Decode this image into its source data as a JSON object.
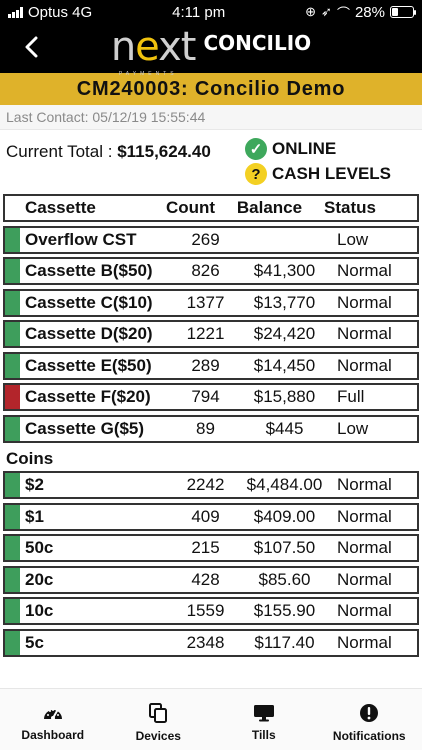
{
  "status_bar": {
    "carrier": "Optus 4G",
    "time": "4:11 pm",
    "battery": "28%",
    "battery_level": 0.28
  },
  "header": {
    "logo_main": "next",
    "logo_sub": "PAYMENTS",
    "logo_concilio": "CONCILIO"
  },
  "title": "CM240003: Concilio Demo",
  "last_contact": "Last Contact: 05/12/19 15:55:44",
  "summary": {
    "current_total_label": "Current Total : ",
    "current_total_value": "$115,624.40",
    "online_label": "ONLINE",
    "cash_levels_label": "CASH LEVELS"
  },
  "table": {
    "headers": {
      "name": "Cassette",
      "count": "Count",
      "balance": "Balance",
      "status": "Status"
    },
    "cassettes": [
      {
        "name": "Overflow CST",
        "count": "269",
        "balance": "",
        "status": "Low",
        "indicator": "green"
      },
      {
        "name": "Cassette B($50)",
        "count": "826",
        "balance": "$41,300",
        "status": "Normal",
        "indicator": "green"
      },
      {
        "name": "Cassette C($10)",
        "count": "1377",
        "balance": "$13,770",
        "status": "Normal",
        "indicator": "green"
      },
      {
        "name": "Cassette D($20)",
        "count": "1221",
        "balance": "$24,420",
        "status": "Normal",
        "indicator": "green"
      },
      {
        "name": "Cassette E($50)",
        "count": "289",
        "balance": "$14,450",
        "status": "Normal",
        "indicator": "green"
      },
      {
        "name": "Cassette F($20)",
        "count": "794",
        "balance": "$15,880",
        "status": "Full",
        "indicator": "red"
      },
      {
        "name": "Cassette G($5)",
        "count": "89",
        "balance": "$445",
        "status": "Low",
        "indicator": "green"
      }
    ],
    "coins_label": "Coins",
    "coins": [
      {
        "name": "$2",
        "count": "2242",
        "balance": "$4,484.00",
        "status": "Normal",
        "indicator": "green"
      },
      {
        "name": "$1",
        "count": "409",
        "balance": "$409.00",
        "status": "Normal",
        "indicator": "green"
      },
      {
        "name": "50c",
        "count": "215",
        "balance": "$107.50",
        "status": "Normal",
        "indicator": "green"
      },
      {
        "name": "20c",
        "count": "428",
        "balance": "$85.60",
        "status": "Normal",
        "indicator": "green"
      },
      {
        "name": "10c",
        "count": "1559",
        "balance": "$155.90",
        "status": "Normal",
        "indicator": "green"
      },
      {
        "name": "5c",
        "count": "2348",
        "balance": "$117.40",
        "status": "Normal",
        "indicator": "green"
      }
    ]
  },
  "tabs": [
    {
      "label": "Dashboard",
      "icon": "dashboard-gauge-icon"
    },
    {
      "label": "Devices",
      "icon": "devices-copy-icon"
    },
    {
      "label": "Tills",
      "icon": "tills-monitor-icon"
    },
    {
      "label": "Notifications",
      "icon": "notifications-alert-icon"
    }
  ],
  "colors": {
    "title_bar": "#dfb22a",
    "indicator_green": "#3e9e5c",
    "indicator_red": "#b3252b",
    "online_green": "#3ea85c",
    "cash_yellow": "#f3d023"
  }
}
